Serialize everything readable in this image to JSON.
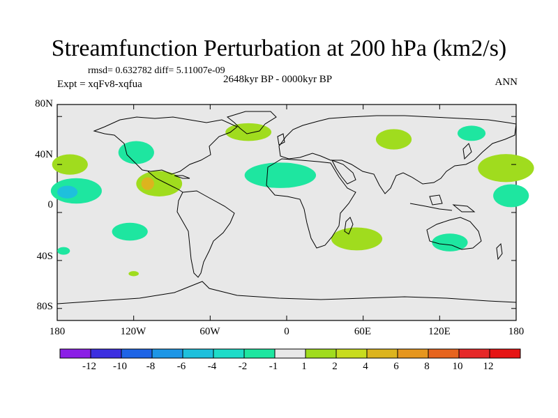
{
  "title": "Streamfunction Perturbation at 200 hPa (km2/s)",
  "stats": "rmsd= 0.632782 diff= 5.11007e-09",
  "subtitle": "2648kyr BP - 0000kyr BP",
  "experiment": "Expt = xqFv8-xqfua",
  "season": "ANN",
  "map": {
    "projection": "cylindrical equidistant",
    "lon_range": [
      -180,
      180
    ],
    "lat_range": [
      -90,
      90
    ],
    "background_color": "#e8e8e8",
    "coastline_color": "#000000",
    "lat_labels": [
      "80N",
      "40N",
      "0",
      "40S",
      "80S"
    ],
    "lat_values": [
      80,
      40,
      0,
      -40,
      -80
    ],
    "lon_labels": [
      "180",
      "120W",
      "60W",
      "0",
      "60E",
      "120E",
      "180"
    ],
    "lon_values": [
      -180,
      -120,
      -60,
      0,
      60,
      120,
      180
    ]
  },
  "colorbar": {
    "labels": [
      "-12",
      "-10",
      "-8",
      "-6",
      "-4",
      "-2",
      "-1",
      "1",
      "2",
      "4",
      "6",
      "8",
      "10",
      "12"
    ],
    "colors": [
      "#8b1ee6",
      "#3c2ee0",
      "#1e64e6",
      "#1e96e6",
      "#1ec0dc",
      "#1edcc8",
      "#1ee6a0",
      "#e8e8e8",
      "#a0dc1e",
      "#c8dc1e",
      "#dcb41e",
      "#e6961e",
      "#e6641e",
      "#e62828",
      "#e61414"
    ]
  },
  "anomalies": [
    {
      "lon": -30,
      "lat": 67,
      "rx": 18,
      "ry": 7,
      "color": "#a0dc1e"
    },
    {
      "lon": -118,
      "lat": 50,
      "rx": 14,
      "ry": 9,
      "color": "#1ee6a0"
    },
    {
      "lon": -170,
      "lat": 40,
      "rx": 14,
      "ry": 8,
      "color": "#a0dc1e"
    },
    {
      "lon": -165,
      "lat": 18,
      "rx": 20,
      "ry": 10,
      "color": "#1ee6a0"
    },
    {
      "lon": -172,
      "lat": 17,
      "rx": 8,
      "ry": 5,
      "color": "#1ec0dc"
    },
    {
      "lon": -100,
      "lat": 24,
      "rx": 18,
      "ry": 10,
      "color": "#a0dc1e"
    },
    {
      "lon": -109,
      "lat": 24,
      "rx": 5,
      "ry": 5,
      "color": "#dcb41e"
    },
    {
      "lon": -5,
      "lat": 31,
      "rx": 28,
      "ry": 10,
      "color": "#1ee6a0"
    },
    {
      "lon": 84,
      "lat": 61,
      "rx": 14,
      "ry": 8,
      "color": "#a0dc1e"
    },
    {
      "lon": 145,
      "lat": 66,
      "rx": 11,
      "ry": 6,
      "color": "#1ee6a0"
    },
    {
      "lon": 172,
      "lat": 37,
      "rx": 22,
      "ry": 11,
      "color": "#a0dc1e"
    },
    {
      "lon": 176,
      "lat": 14,
      "rx": 14,
      "ry": 9,
      "color": "#1ee6a0"
    },
    {
      "lon": 55,
      "lat": -22,
      "rx": 20,
      "ry": 9,
      "color": "#a0dc1e"
    },
    {
      "lon": 128,
      "lat": -25,
      "rx": 14,
      "ry": 7,
      "color": "#1ee6a0"
    },
    {
      "lon": -123,
      "lat": -16,
      "rx": 14,
      "ry": 7,
      "color": "#1ee6a0"
    },
    {
      "lon": -175,
      "lat": -32,
      "rx": 5,
      "ry": 3,
      "color": "#1ee6a0"
    },
    {
      "lon": -120,
      "lat": -51,
      "rx": 4,
      "ry": 2,
      "color": "#a0dc1e"
    }
  ]
}
